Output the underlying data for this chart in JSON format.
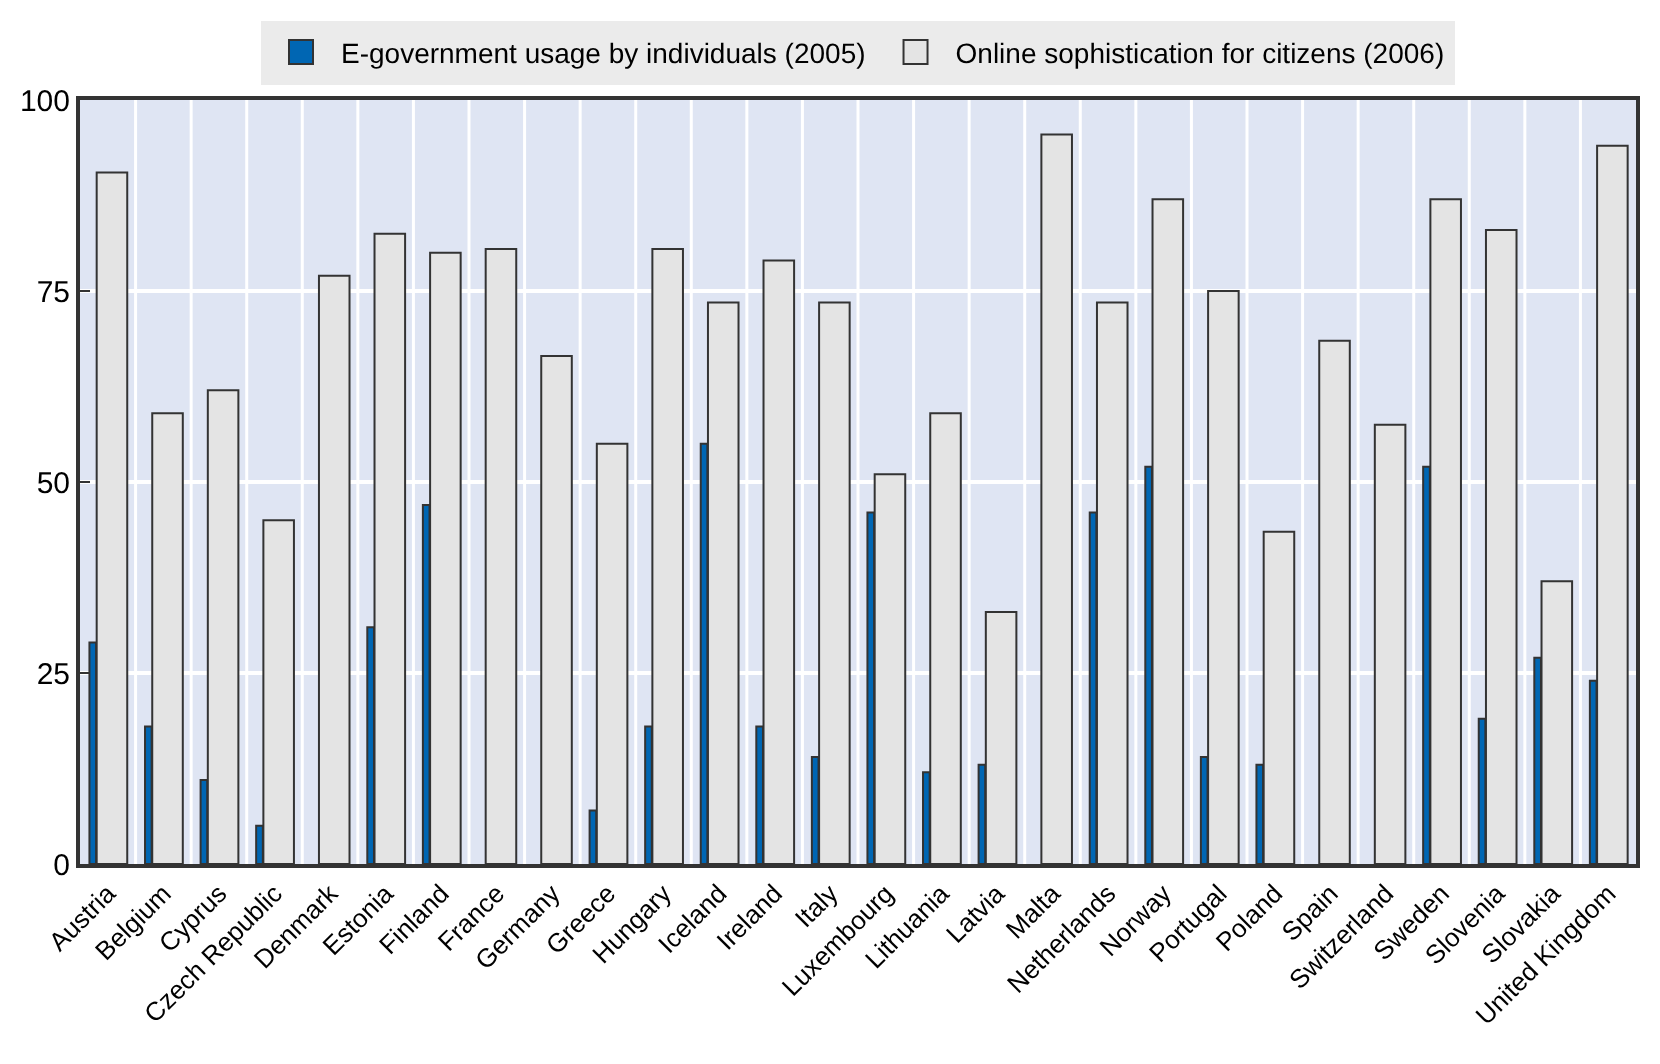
{
  "chart_data": {
    "type": "bar",
    "categories": [
      "Austria",
      "Belgium",
      "Cyprus",
      "Czech Republic",
      "Denmark",
      "Estonia",
      "Finland",
      "France",
      "Germany",
      "Greece",
      "Hungary",
      "Iceland",
      "Ireland",
      "Italy",
      "Luxembourg",
      "Lithuania",
      "Latvia",
      "Malta",
      "Netherlands",
      "Norway",
      "Portugal",
      "Poland",
      "Spain",
      "Switzerland",
      "Sweden",
      "Slovenia",
      "Slovakia",
      "United Kingdom"
    ],
    "series": [
      {
        "name": "E-government usage by individuals (2005)",
        "color": "#0066b3",
        "values": [
          29,
          18,
          11,
          5,
          null,
          31,
          47,
          null,
          null,
          7,
          18,
          55,
          18,
          14,
          46,
          12,
          13,
          null,
          46,
          52,
          14,
          13,
          null,
          null,
          52,
          19,
          27,
          24
        ]
      },
      {
        "name": "Online sophistication for citizens (2006)",
        "color": "#e4e4e4",
        "values": [
          90.5,
          59,
          62,
          45,
          77,
          82.5,
          80,
          80.5,
          66.5,
          55,
          80.5,
          73.5,
          79,
          73.5,
          51,
          59,
          33,
          95.5,
          73.5,
          87,
          75,
          43.5,
          68.5,
          57.5,
          87,
          83,
          37,
          94
        ]
      }
    ],
    "ylim": [
      0,
      100
    ],
    "yticks": [
      0,
      25,
      50,
      75,
      100
    ],
    "grid": true,
    "legend": "top"
  }
}
